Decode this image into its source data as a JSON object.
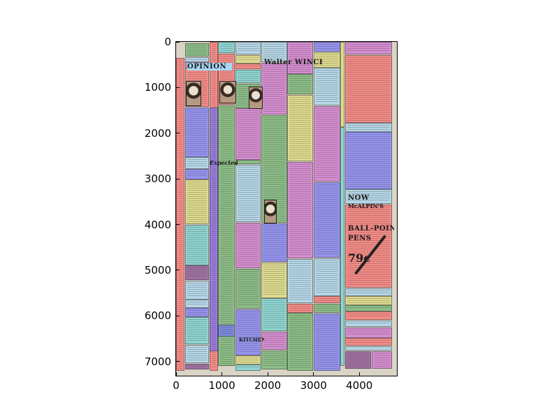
{
  "axes": {
    "x_ticks": [
      "0",
      "1000",
      "2000",
      "3000",
      "4000"
    ],
    "y_ticks": [
      "0",
      "1000",
      "2000",
      "3000",
      "4000",
      "5000",
      "6000",
      "7000"
    ],
    "x_range": [
      0,
      4820
    ],
    "y_range": [
      7310,
      0
    ]
  },
  "palette": {
    "red": "#ff6f6f",
    "green": "#6fb56f",
    "blue": "#7b7bff",
    "magenta": "#d473d4",
    "yellow": "#e1df7a",
    "light_blue": "#a8d8f5",
    "cyan": "#72d6d6",
    "purple": "#8a4a96"
  },
  "headlines": [
    {
      "text": "OPINION"
    },
    {
      "text": "Walter WINCHELL"
    },
    {
      "text": "Expected"
    },
    {
      "text": "NOW"
    },
    {
      "text": "McALPIN'S"
    },
    {
      "text": "BALL-POINT"
    },
    {
      "text": "PENS"
    },
    {
      "text": "79c"
    },
    {
      "text": "KITCHEN"
    }
  ],
  "regions": [
    {
      "c": "red",
      "x": [
        0,
        190
      ],
      "y": [
        350,
        7200
      ]
    },
    {
      "c": "green",
      "x": [
        200,
        720
      ],
      "y": [
        30,
        320
      ]
    },
    {
      "c": "light_blue",
      "x": [
        200,
        720
      ],
      "y": [
        330,
        440
      ]
    },
    {
      "c": "magenta",
      "x": [
        200,
        720
      ],
      "y": [
        450,
        560
      ]
    },
    {
      "c": "red",
      "x": [
        200,
        720
      ],
      "y": [
        570,
        1420
      ]
    },
    {
      "c": "blue",
      "x": [
        200,
        720
      ],
      "y": [
        1430,
        2520
      ]
    },
    {
      "c": "light_blue",
      "x": [
        200,
        720
      ],
      "y": [
        2530,
        2780
      ]
    },
    {
      "c": "blue",
      "x": [
        200,
        720
      ],
      "y": [
        2790,
        3010
      ]
    },
    {
      "c": "yellow",
      "x": [
        200,
        720
      ],
      "y": [
        3020,
        3990
      ]
    },
    {
      "c": "cyan",
      "x": [
        200,
        720
      ],
      "y": [
        4000,
        4890
      ]
    },
    {
      "c": "purple",
      "x": [
        200,
        720
      ],
      "y": [
        4900,
        5220
      ]
    },
    {
      "c": "light_blue",
      "x": [
        200,
        720
      ],
      "y": [
        5230,
        5640
      ]
    },
    {
      "c": "light_blue",
      "x": [
        200,
        720
      ],
      "y": [
        5650,
        5820
      ]
    },
    {
      "c": "blue",
      "x": [
        200,
        720
      ],
      "y": [
        5830,
        6020
      ]
    },
    {
      "c": "cyan",
      "x": [
        200,
        720
      ],
      "y": [
        6030,
        6620
      ]
    },
    {
      "c": "light_blue",
      "x": [
        200,
        720
      ],
      "y": [
        6630,
        7040
      ]
    },
    {
      "c": "purple",
      "x": [
        200,
        720
      ],
      "y": [
        7050,
        7180
      ]
    },
    {
      "c": "red",
      "x": [
        730,
        910
      ],
      "y": [
        0,
        7200
      ]
    },
    {
      "c": "blue",
      "x": [
        730,
        910
      ],
      "y": [
        1440,
        6780
      ]
    },
    {
      "c": "cyan",
      "x": [
        920,
        1280
      ],
      "y": [
        0,
        250
      ]
    },
    {
      "c": "red",
      "x": [
        920,
        1280
      ],
      "y": [
        260,
        1380
      ]
    },
    {
      "c": "green",
      "x": [
        920,
        1280
      ],
      "y": [
        1390,
        7100
      ]
    },
    {
      "c": "blue",
      "x": [
        920,
        1280
      ],
      "y": [
        6200,
        6450
      ]
    },
    {
      "c": "light_blue",
      "x": [
        1290,
        1850
      ],
      "y": [
        0,
        280
      ]
    },
    {
      "c": "yellow",
      "x": [
        1290,
        1850
      ],
      "y": [
        290,
        470
      ]
    },
    {
      "c": "red",
      "x": [
        1290,
        1850
      ],
      "y": [
        480,
        600
      ]
    },
    {
      "c": "cyan",
      "x": [
        1290,
        1850
      ],
      "y": [
        610,
        900
      ]
    },
    {
      "c": "green",
      "x": [
        1290,
        1850
      ],
      "y": [
        910,
        1450
      ]
    },
    {
      "c": "magenta",
      "x": [
        1290,
        1850
      ],
      "y": [
        1460,
        2580
      ]
    },
    {
      "c": "green",
      "x": [
        1290,
        1850
      ],
      "y": [
        2590,
        2680
      ]
    },
    {
      "c": "light_blue",
      "x": [
        1290,
        1850
      ],
      "y": [
        2690,
        3950
      ]
    },
    {
      "c": "magenta",
      "x": [
        1290,
        1850
      ],
      "y": [
        3960,
        4960
      ]
    },
    {
      "c": "green",
      "x": [
        1290,
        1850
      ],
      "y": [
        4970,
        5840
      ]
    },
    {
      "c": "blue",
      "x": [
        1290,
        1850
      ],
      "y": [
        5850,
        6860
      ]
    },
    {
      "c": "yellow",
      "x": [
        1290,
        1850
      ],
      "y": [
        6870,
        7060
      ]
    },
    {
      "c": "cyan",
      "x": [
        1290,
        1850
      ],
      "y": [
        7070,
        7200
      ]
    },
    {
      "c": "light_blue",
      "x": [
        1860,
        2420
      ],
      "y": [
        0,
        450
      ]
    },
    {
      "c": "magenta",
      "x": [
        1860,
        2420
      ],
      "y": [
        460,
        1590
      ]
    },
    {
      "c": "green",
      "x": [
        1860,
        2420
      ],
      "y": [
        1600,
        3960
      ]
    },
    {
      "c": "blue",
      "x": [
        1860,
        2420
      ],
      "y": [
        3970,
        4820
      ]
    },
    {
      "c": "yellow",
      "x": [
        1860,
        2420
      ],
      "y": [
        4830,
        5610
      ]
    },
    {
      "c": "cyan",
      "x": [
        1860,
        2420
      ],
      "y": [
        5620,
        6330
      ]
    },
    {
      "c": "magenta",
      "x": [
        1860,
        2420
      ],
      "y": [
        6340,
        6750
      ]
    },
    {
      "c": "green",
      "x": [
        1860,
        2420
      ],
      "y": [
        6760,
        7180
      ]
    },
    {
      "c": "magenta",
      "x": [
        2430,
        2990
      ],
      "y": [
        0,
        700
      ]
    },
    {
      "c": "green",
      "x": [
        2430,
        2990
      ],
      "y": [
        710,
        1150
      ]
    },
    {
      "c": "yellow",
      "x": [
        2430,
        2990
      ],
      "y": [
        1160,
        2620
      ]
    },
    {
      "c": "magenta",
      "x": [
        2430,
        2990
      ],
      "y": [
        2630,
        4740
      ]
    },
    {
      "c": "light_blue",
      "x": [
        2430,
        2990
      ],
      "y": [
        4750,
        5720
      ]
    },
    {
      "c": "red",
      "x": [
        2430,
        2990
      ],
      "y": [
        5730,
        5930
      ]
    },
    {
      "c": "green",
      "x": [
        2430,
        2990
      ],
      "y": [
        5940,
        7200
      ]
    },
    {
      "c": "blue",
      "x": [
        3000,
        3580
      ],
      "y": [
        0,
        220
      ]
    },
    {
      "c": "yellow",
      "x": [
        3000,
        3580
      ],
      "y": [
        230,
        560
      ]
    },
    {
      "c": "light_blue",
      "x": [
        3000,
        3580
      ],
      "y": [
        570,
        1390
      ]
    },
    {
      "c": "magenta",
      "x": [
        3000,
        3580
      ],
      "y": [
        1400,
        3060
      ]
    },
    {
      "c": "blue",
      "x": [
        3000,
        3580
      ],
      "y": [
        3070,
        4730
      ]
    },
    {
      "c": "light_blue",
      "x": [
        3000,
        3580
      ],
      "y": [
        4740,
        5560
      ]
    },
    {
      "c": "red",
      "x": [
        3000,
        3580
      ],
      "y": [
        5570,
        5720
      ]
    },
    {
      "c": "green",
      "x": [
        3000,
        3580
      ],
      "y": [
        5730,
        5940
      ]
    },
    {
      "c": "blue",
      "x": [
        3000,
        3580
      ],
      "y": [
        5950,
        7200
      ]
    },
    {
      "c": "yellow",
      "x": [
        3590,
        3680
      ],
      "y": [
        0,
        1860
      ]
    },
    {
      "c": "cyan",
      "x": [
        3590,
        3680
      ],
      "y": [
        1870,
        7100
      ]
    },
    {
      "c": "magenta",
      "x": [
        3690,
        4720
      ],
      "y": [
        0,
        280
      ]
    },
    {
      "c": "red",
      "x": [
        3690,
        4720
      ],
      "y": [
        290,
        1770
      ]
    },
    {
      "c": "light_blue",
      "x": [
        3690,
        4720
      ],
      "y": [
        1780,
        1970
      ]
    },
    {
      "c": "blue",
      "x": [
        3690,
        4720
      ],
      "y": [
        1980,
        3220
      ]
    },
    {
      "c": "light_blue",
      "x": [
        3690,
        4720
      ],
      "y": [
        3230,
        3550
      ]
    },
    {
      "c": "red",
      "x": [
        3690,
        4720
      ],
      "y": [
        3560,
        5390
      ]
    },
    {
      "c": "light_blue",
      "x": [
        3690,
        4720
      ],
      "y": [
        5400,
        5560
      ]
    },
    {
      "c": "yellow",
      "x": [
        3690,
        4720
      ],
      "y": [
        5570,
        5760
      ]
    },
    {
      "c": "green",
      "x": [
        3690,
        4720
      ],
      "y": [
        5770,
        5900
      ]
    },
    {
      "c": "red",
      "x": [
        3690,
        4720
      ],
      "y": [
        5910,
        6090
      ]
    },
    {
      "c": "light_blue",
      "x": [
        3690,
        4720
      ],
      "y": [
        6100,
        6240
      ]
    },
    {
      "c": "magenta",
      "x": [
        3690,
        4720
      ],
      "y": [
        6250,
        6480
      ]
    },
    {
      "c": "red",
      "x": [
        3690,
        4720
      ],
      "y": [
        6490,
        6660
      ]
    },
    {
      "c": "light_blue",
      "x": [
        3690,
        4720
      ],
      "y": [
        6670,
        6760
      ]
    },
    {
      "c": "purple",
      "x": [
        3690,
        4260
      ],
      "y": [
        6770,
        7160
      ]
    },
    {
      "c": "magenta",
      "x": [
        4270,
        4720
      ],
      "y": [
        6770,
        7160
      ]
    }
  ]
}
